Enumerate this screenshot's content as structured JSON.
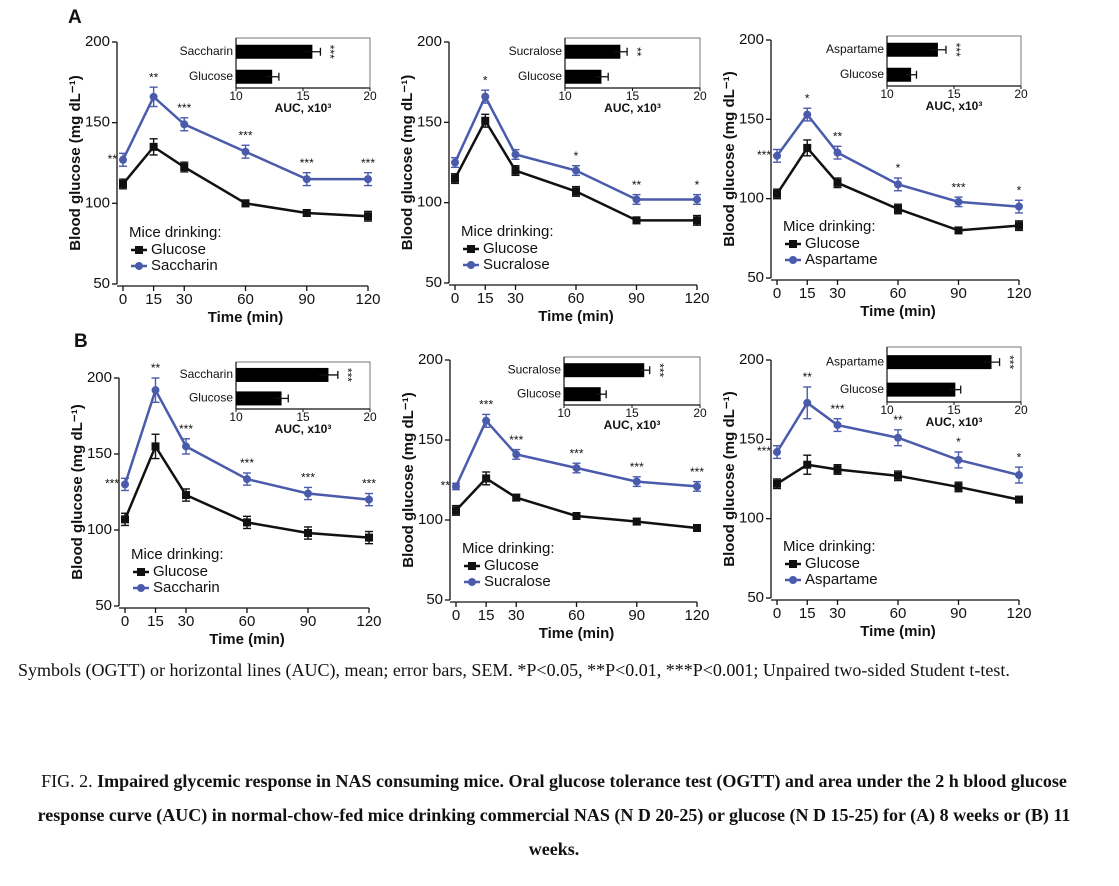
{
  "panel_labels": [
    "A",
    "B"
  ],
  "chart_data": [
    {
      "type": "line",
      "ylabel": "Blood glucose (mg dL⁻¹)",
      "xlabel": "Time (min)",
      "legend_title": "Mice drinking:",
      "legend": "lower left",
      "x": [
        0,
        15,
        30,
        60,
        90,
        120
      ],
      "xlim": [
        0,
        120
      ],
      "xticks": [
        0,
        15,
        30,
        60,
        90,
        120
      ],
      "ylim": [
        50,
        200
      ],
      "yticks": [
        50,
        100,
        150,
        200
      ],
      "series": [
        {
          "name": "Glucose",
          "color": "#111111",
          "values": [
            112,
            135,
            122.5,
            100,
            94,
            92
          ],
          "errors": [
            3,
            5,
            3,
            2,
            2,
            3
          ]
        },
        {
          "name": "Saccharin",
          "color": "#4a5bab",
          "values": [
            127,
            166,
            149,
            132,
            115,
            115
          ],
          "errors": [
            4,
            6,
            4,
            4,
            4,
            4
          ],
          "annotations": [
            "**",
            "**",
            "***",
            "***",
            "***",
            "***"
          ]
        }
      ]
    },
    {
      "type": "hbar",
      "xlabel": "AUC, x10³",
      "categories": [
        "Saccharin",
        "Glucose"
      ],
      "values": [
        15.7,
        12.7
      ],
      "errors": [
        0.6,
        0.5
      ],
      "annotations": [
        "***",
        null
      ],
      "color": "#000000",
      "xlim": [
        10,
        20
      ],
      "xticks": [
        10,
        15,
        20
      ]
    },
    {
      "type": "line",
      "ylabel": "Blood glucose (mg dL⁻¹)",
      "xlabel": "Time (min)",
      "legend_title": "Mice drinking:",
      "legend": "lower left",
      "x": [
        0,
        15,
        30,
        60,
        90,
        120
      ],
      "xlim": [
        0,
        120
      ],
      "xticks": [
        0,
        15,
        30,
        60,
        90,
        120
      ],
      "ylim": [
        50,
        200
      ],
      "yticks": [
        50,
        100,
        150,
        200
      ],
      "series": [
        {
          "name": "Glucose",
          "color": "#111111",
          "values": [
            115,
            151,
            120,
            107,
            89,
            89
          ],
          "errors": [
            3,
            4,
            3,
            3,
            2,
            3
          ]
        },
        {
          "name": "Sucralose",
          "color": "#4a5bab",
          "values": [
            125,
            166,
            130,
            120,
            102,
            102
          ],
          "errors": [
            3,
            4,
            3,
            3,
            3,
            3
          ],
          "annotations": [
            null,
            "*",
            null,
            "*",
            "**",
            "*"
          ]
        }
      ]
    },
    {
      "type": "hbar",
      "xlabel": "AUC, x10³",
      "categories": [
        "Sucralose",
        "Glucose"
      ],
      "values": [
        14.1,
        12.7
      ],
      "errors": [
        0.5,
        0.5
      ],
      "annotations": [
        "**",
        null
      ],
      "color": "#000000",
      "xlim": [
        10,
        20
      ],
      "xticks": [
        10,
        15,
        20
      ]
    },
    {
      "type": "line",
      "ylabel": "Blood glucose (mg dL⁻¹)",
      "xlabel": "Time (min)",
      "legend_title": "Mice drinking:",
      "legend": "lower left",
      "x": [
        0,
        15,
        30,
        60,
        90,
        120
      ],
      "xlim": [
        0,
        120
      ],
      "xticks": [
        0,
        15,
        30,
        60,
        90,
        120
      ],
      "ylim": [
        50,
        200
      ],
      "yticks": [
        50,
        100,
        150,
        200
      ],
      "series": [
        {
          "name": "Glucose",
          "color": "#111111",
          "values": [
            103,
            132,
            110,
            93.5,
            80,
            83
          ],
          "errors": [
            3,
            5,
            3,
            3,
            2,
            3
          ]
        },
        {
          "name": "Aspartame",
          "color": "#4a5bab",
          "values": [
            127,
            153,
            129,
            109,
            98,
            95
          ],
          "errors": [
            4,
            4,
            4,
            4,
            3,
            4
          ],
          "annotations": [
            "***",
            "*",
            "**",
            "*",
            "***",
            "*"
          ]
        }
      ]
    },
    {
      "type": "hbar",
      "xlabel": "AUC, x10³",
      "categories": [
        "Aspartame",
        "Glucose"
      ],
      "values": [
        13.8,
        11.8
      ],
      "errors": [
        0.6,
        0.4
      ],
      "annotations": [
        "***",
        null
      ],
      "color": "#000000",
      "xlim": [
        10,
        20
      ],
      "xticks": [
        10,
        15,
        20
      ]
    },
    {
      "type": "line",
      "ylabel": "Blood glucose (mg dL⁻¹)",
      "xlabel": "Time (min)",
      "legend_title": "Mice drinking:",
      "legend": "lower left",
      "x": [
        0,
        15,
        30,
        60,
        90,
        120
      ],
      "xlim": [
        0,
        120
      ],
      "xticks": [
        0,
        15,
        30,
        60,
        90,
        120
      ],
      "ylim": [
        50,
        200
      ],
      "yticks": [
        50,
        100,
        150,
        200
      ],
      "series": [
        {
          "name": "Glucose",
          "color": "#111111",
          "values": [
            107,
            155,
            123,
            105,
            98,
            95
          ],
          "errors": [
            4,
            8,
            4,
            4,
            4,
            4
          ]
        },
        {
          "name": "Saccharin",
          "color": "#4a5bab",
          "values": [
            130,
            192,
            155,
            133.5,
            124,
            120
          ],
          "errors": [
            4,
            8,
            5,
            4,
            4,
            4
          ],
          "annotations": [
            "***",
            "**",
            "***",
            "***",
            "***",
            "***"
          ]
        }
      ]
    },
    {
      "type": "hbar",
      "xlabel": "AUC, x10³",
      "categories": [
        "Saccharin",
        "Glucose"
      ],
      "values": [
        16.9,
        13.4
      ],
      "errors": [
        0.7,
        0.5
      ],
      "annotations": [
        "***",
        null
      ],
      "color": "#000000",
      "xlim": [
        10,
        20
      ],
      "xticks": [
        10,
        15,
        20
      ]
    },
    {
      "type": "line",
      "ylabel": "Blood glucose (mg dL⁻¹)",
      "xlabel": "Time (min)",
      "legend_title": "Mice drinking:",
      "legend": "lower left",
      "x": [
        0,
        15,
        30,
        60,
        90,
        120
      ],
      "xlim": [
        0,
        120
      ],
      "xticks": [
        0,
        15,
        30,
        60,
        90,
        120
      ],
      "ylim": [
        50,
        200
      ],
      "yticks": [
        50,
        100,
        150,
        200
      ],
      "series": [
        {
          "name": "Glucose",
          "color": "#111111",
          "values": [
            106,
            126,
            114,
            102.5,
            99,
            95
          ],
          "errors": [
            3,
            4,
            2,
            2,
            2,
            2
          ]
        },
        {
          "name": "Sucralose",
          "color": "#4a5bab",
          "values": [
            121,
            162,
            141,
            132.5,
            124,
            121
          ],
          "errors": [
            2,
            4,
            3,
            3,
            3,
            3
          ],
          "annotations": [
            "**",
            "***",
            "***",
            "***",
            "***",
            "***"
          ]
        }
      ]
    },
    {
      "type": "hbar",
      "xlabel": "AUC, x10³",
      "categories": [
        "Sucralose",
        "Glucose"
      ],
      "values": [
        15.9,
        12.7
      ],
      "errors": [
        0.4,
        0.4
      ],
      "annotations": [
        "***",
        null
      ],
      "color": "#000000",
      "xlim": [
        10,
        20
      ],
      "xticks": [
        10,
        15,
        20
      ]
    },
    {
      "type": "line",
      "ylabel": "Blood glucose (mg dL⁻¹)",
      "xlabel": "Time (min)",
      "legend_title": "Mice drinking:",
      "legend": "lower left",
      "x": [
        0,
        15,
        30,
        60,
        90,
        120
      ],
      "xlim": [
        0,
        120
      ],
      "xticks": [
        0,
        15,
        30,
        60,
        90,
        120
      ],
      "ylim": [
        50,
        200
      ],
      "yticks": [
        50,
        100,
        150,
        200
      ],
      "series": [
        {
          "name": "Glucose",
          "color": "#111111",
          "values": [
            122,
            134,
            131,
            127,
            120,
            112
          ],
          "errors": [
            3,
            6,
            3,
            3,
            3,
            2
          ]
        },
        {
          "name": "Aspartame",
          "color": "#4a5bab",
          "values": [
            142,
            173,
            159,
            151,
            137,
            127.5
          ],
          "errors": [
            4,
            10,
            4,
            5,
            5,
            5
          ],
          "annotations": [
            "***",
            "**",
            "***",
            "**",
            "*",
            "*"
          ]
        }
      ]
    },
    {
      "type": "hbar",
      "xlabel": "AUC, x10³",
      "categories": [
        "Aspartame",
        "Glucose"
      ],
      "values": [
        17.8,
        15.1
      ],
      "errors": [
        0.6,
        0.4
      ],
      "annotations": [
        "***",
        null
      ],
      "color": "#000000",
      "xlim": [
        10,
        20
      ],
      "xticks": [
        10,
        15,
        20
      ]
    }
  ],
  "caption": {
    "note": "Symbols (OGTT) or horizontal lines (AUC), mean; error bars, SEM. *P<0.05, **P<0.01, ***P<0.001; Unpaired two-sided Student t-test.",
    "figure_label": "FIG. 2.",
    "figure_text": "Impaired glycemic response in NAS consuming mice. Oral glucose tolerance test (OGTT) and area under the 2 h blood glucose response curve (AUC) in normal-chow-fed mice drinking commercial NAS (N D 20-25) or glucose (N D 15-25) for (A) 8 weeks or (B) 11 weeks."
  }
}
